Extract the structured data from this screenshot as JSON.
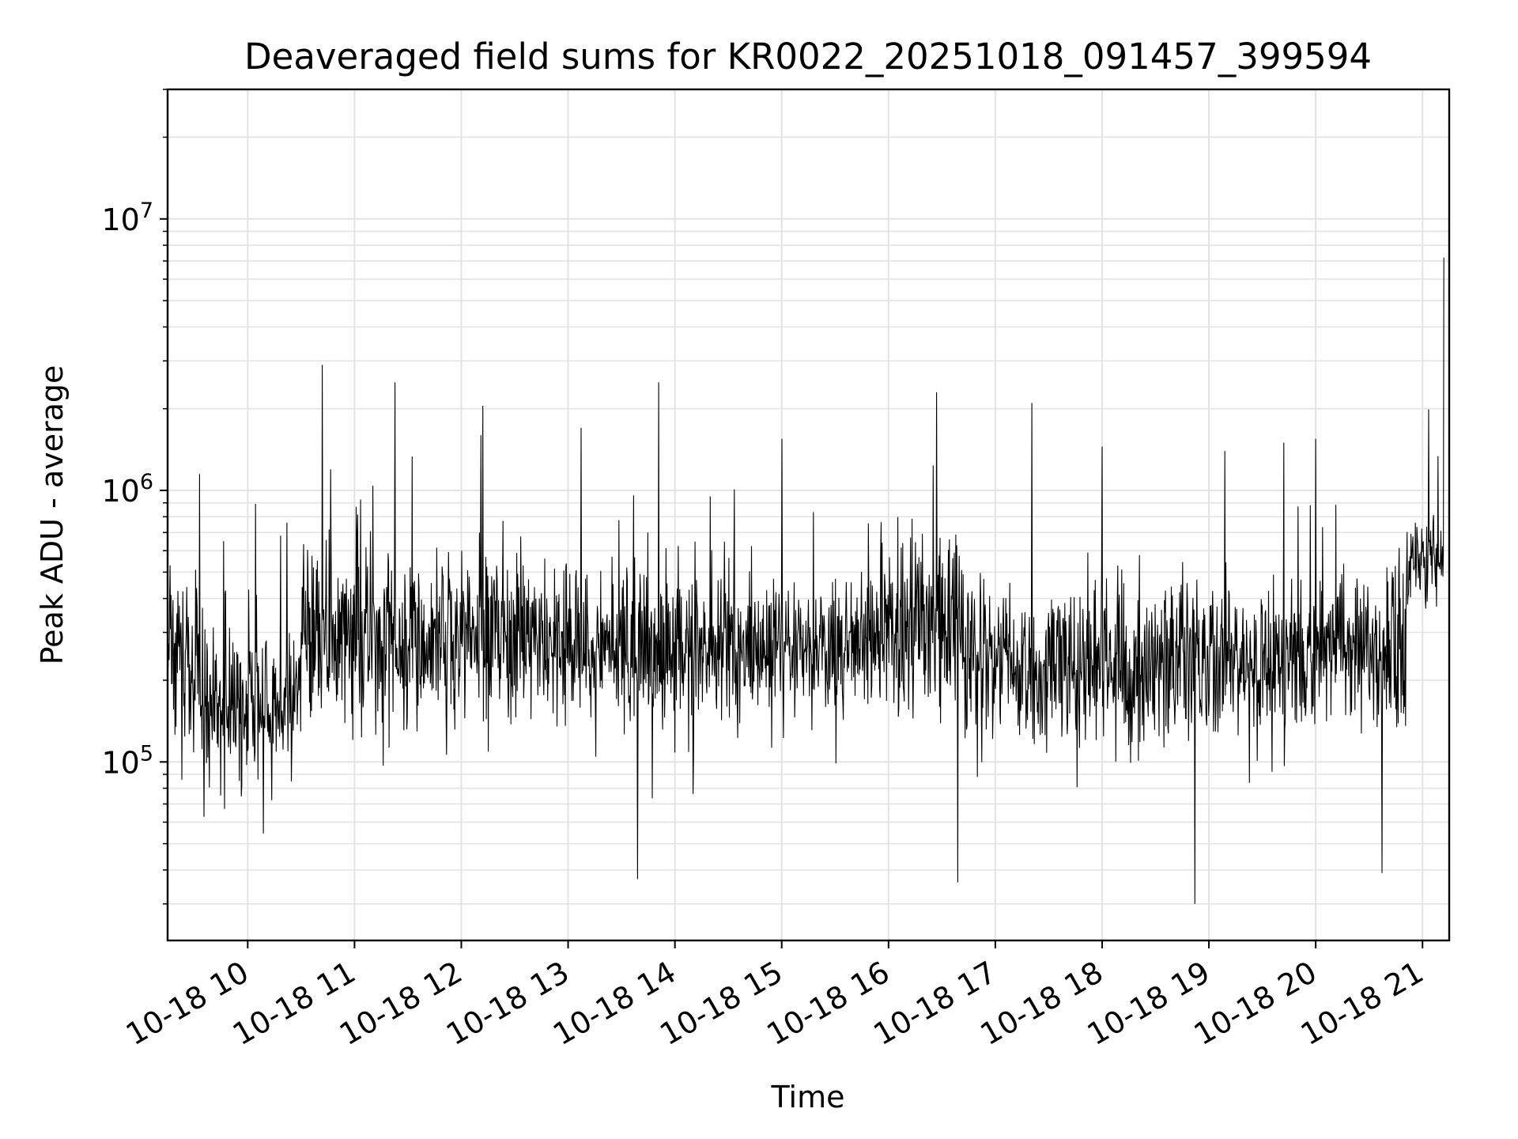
{
  "chart_data": {
    "type": "line",
    "title": "Deaveraged field sums for KR0022_20251018_091457_399594",
    "xlabel": "Time",
    "ylabel": "Peak ADU - average",
    "yscale": "log",
    "ylim": [
      22000,
      30000000
    ],
    "xlim_hours": [
      9.25,
      21.25
    ],
    "x_tick_labels": [
      "10-18 10",
      "10-18 11",
      "10-18 12",
      "10-18 13",
      "10-18 14",
      "10-18 15",
      "10-18 16",
      "10-18 17",
      "10-18 18",
      "10-18 19",
      "10-18 20",
      "10-18 21"
    ],
    "x_tick_hours": [
      10,
      11,
      12,
      13,
      14,
      15,
      16,
      17,
      18,
      19,
      20,
      21
    ],
    "y_major_ticks": [
      {
        "value": 100000,
        "base": "10",
        "exp": "5"
      },
      {
        "value": 1000000,
        "base": "10",
        "exp": "6"
      },
      {
        "value": 10000000,
        "base": "10",
        "exp": "7"
      }
    ],
    "grid": true,
    "line_color": "#000000",
    "segments": [
      {
        "start_hour": 9.25,
        "end_hour": 9.45,
        "median": 260000,
        "spread": 0.28
      },
      {
        "start_hour": 9.45,
        "end_hour": 10.5,
        "median": 170000,
        "spread": 0.27
      },
      {
        "start_hour": 10.5,
        "end_hour": 12.6,
        "median": 300000,
        "spread": 0.3
      },
      {
        "start_hour": 12.6,
        "end_hour": 15.8,
        "median": 260000,
        "spread": 0.24
      },
      {
        "start_hour": 15.8,
        "end_hour": 16.7,
        "median": 320000,
        "spread": 0.3
      },
      {
        "start_hour": 16.7,
        "end_hour": 19.6,
        "median": 230000,
        "spread": 0.27
      },
      {
        "start_hour": 19.6,
        "end_hour": 20.85,
        "median": 260000,
        "spread": 0.26
      },
      {
        "start_hour": 20.85,
        "end_hour": 21.2,
        "median": 560000,
        "spread": 0.14
      }
    ],
    "notable_spikes": [
      {
        "hour": 9.55,
        "value": 1150000
      },
      {
        "hour": 10.7,
        "value": 2900000
      },
      {
        "hour": 11.38,
        "value": 2500000
      },
      {
        "hour": 12.2,
        "value": 2050000
      },
      {
        "hour": 13.12,
        "value": 1700000
      },
      {
        "hour": 13.85,
        "value": 2500000
      },
      {
        "hour": 15.0,
        "value": 1550000
      },
      {
        "hour": 16.45,
        "value": 2300000
      },
      {
        "hour": 18.0,
        "value": 1450000
      },
      {
        "hour": 19.7,
        "value": 1500000
      },
      {
        "hour": 20.0,
        "value": 1550000
      },
      {
        "hour": 21.21,
        "value": 7200000
      }
    ],
    "notable_dips": [
      {
        "hour": 13.65,
        "value": 37000
      },
      {
        "hour": 16.65,
        "value": 36000
      },
      {
        "hour": 18.87,
        "value": 30000
      },
      {
        "hour": 20.62,
        "value": 39000
      }
    ],
    "sample_count": 2600
  }
}
